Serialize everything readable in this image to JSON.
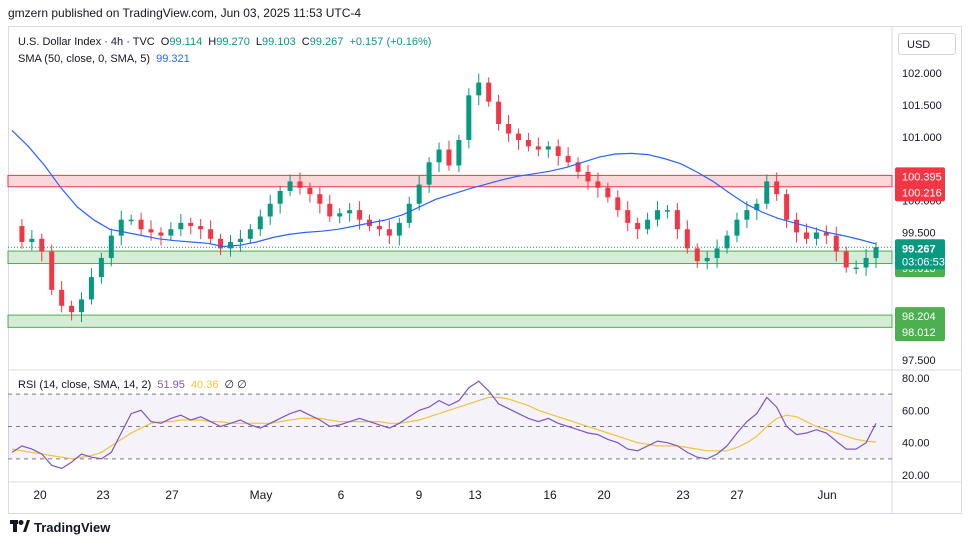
{
  "header": {
    "published_text": "gmzern published on TradingView.com, Jun 03, 2025 11:53 UTC-4"
  },
  "currency_button": "USD",
  "legend": {
    "symbol": "U.S. Dollar Index · 4h · TVC",
    "o_label": "O",
    "o_value": "99.114",
    "h_label": "H",
    "h_value": "99.270",
    "l_label": "L",
    "l_value": "99.103",
    "c_label": "C",
    "c_value": "99.267",
    "change": "+0.157 (+0.16%)",
    "sma_label": "SMA (50, close, 0, SMA, 5)",
    "sma_value": "99.321",
    "rsi_label": "RSI (14, close, SMA, 14, 2)",
    "rsi_value": "51.95",
    "rsi_ma_value": "40.36",
    "rsi_extra": "∅ ∅"
  },
  "colors": {
    "up": "#089981",
    "down": "#f23645",
    "sma": "#2962ff",
    "rsi": "#7e57c2",
    "rsi_ma": "#f0c43c",
    "red_zone": "#f8c9cc",
    "green_zone": "#c8e6c9",
    "green_label": "#4caf50",
    "price_label": "#089981",
    "red_label": "#f23645"
  },
  "footer": {
    "brand": "TradingView",
    "logo_icon": "tradingview-logo-icon"
  },
  "chart_data": [
    {
      "type": "candlestick",
      "title": "U.S. Dollar Index · 4h · TVC",
      "ylim": [
        97.3,
        102.3
      ],
      "y_ticks": [
        "102.000",
        "101.500",
        "101.000",
        "100.000",
        "99.500",
        "97.500"
      ],
      "x_ticks": [
        "20",
        "23",
        "27",
        "May",
        "6",
        "9",
        "13",
        "16",
        "20",
        "23",
        "27",
        "Jun"
      ],
      "close_path": [
        99.6,
        99.35,
        99.4,
        99.2,
        98.6,
        98.35,
        98.25,
        98.45,
        98.8,
        99.1,
        99.45,
        99.7,
        99.7,
        99.55,
        99.5,
        99.45,
        99.55,
        99.65,
        99.6,
        99.55,
        99.4,
        99.25,
        99.35,
        99.4,
        99.55,
        99.75,
        99.95,
        100.15,
        100.3,
        100.2,
        100.1,
        99.95,
        99.75,
        99.8,
        99.85,
        99.7,
        99.6,
        99.55,
        99.45,
        99.65,
        99.95,
        100.25,
        100.6,
        100.8,
        100.55,
        100.95,
        101.65,
        101.85,
        101.55,
        101.2,
        101.05,
        100.95,
        100.85,
        100.8,
        100.85,
        100.7,
        100.6,
        100.45,
        100.3,
        100.2,
        100.05,
        99.85,
        99.65,
        99.55,
        99.7,
        99.85,
        99.85,
        99.55,
        99.25,
        99.05,
        99.1,
        99.25,
        99.45,
        99.7,
        99.85,
        99.95,
        100.3,
        100.1,
        99.7,
        99.5,
        99.4,
        99.5,
        99.45,
        99.2,
        98.95,
        98.95,
        99.1,
        99.27
      ],
      "sma_path": [
        101.1,
        100.85,
        100.55,
        100.2,
        99.9,
        99.7,
        99.55,
        99.5,
        99.45,
        99.4,
        99.37,
        99.35,
        99.33,
        99.28,
        99.3,
        99.35,
        99.42,
        99.47,
        99.5,
        99.52,
        99.55,
        99.6,
        99.65,
        99.7,
        99.78,
        99.9,
        100.02,
        100.1,
        100.18,
        100.25,
        100.32,
        100.38,
        100.42,
        100.46,
        100.52,
        100.6,
        100.68,
        100.73,
        100.74,
        100.72,
        100.66,
        100.58,
        100.45,
        100.3,
        100.12,
        99.95,
        99.82,
        99.72,
        99.65,
        99.58,
        99.5,
        99.45,
        99.39,
        99.32
      ],
      "last_close": 99.267,
      "countdown": "03:06:53",
      "zones": [
        {
          "from": 100.216,
          "to": 100.395,
          "color": "red",
          "labels": [
            "100.395",
            "100.216"
          ]
        },
        {
          "from": 99.013,
          "to": 99.208,
          "color": "green",
          "labels": [
            "99.208",
            "99.013"
          ]
        },
        {
          "from": 98.012,
          "to": 98.204,
          "color": "green",
          "labels": [
            "98.204",
            "98.012"
          ]
        }
      ]
    },
    {
      "type": "line",
      "title": "RSI (14, close, SMA, 14, 2)",
      "ylim": [
        20,
        80
      ],
      "y_ticks": [
        "80.00",
        "60.00",
        "40.00",
        "20.00"
      ],
      "bands": [
        30,
        50,
        70
      ],
      "rsi": [
        34,
        38,
        36,
        33,
        26,
        24,
        28,
        33,
        31,
        30,
        34,
        46,
        58,
        60,
        53,
        52,
        55,
        57,
        54,
        56,
        53,
        50,
        52,
        54,
        51,
        49,
        52,
        55,
        58,
        60,
        57,
        54,
        50,
        51,
        53,
        55,
        53,
        51,
        49,
        52,
        56,
        60,
        62,
        66,
        63,
        66,
        74,
        78,
        72,
        64,
        61,
        58,
        55,
        53,
        55,
        52,
        50,
        48,
        46,
        45,
        42,
        40,
        36,
        35,
        38,
        41,
        40,
        38,
        34,
        31,
        30,
        33,
        38,
        46,
        53,
        58,
        68,
        62,
        50,
        45,
        46,
        48,
        46,
        41,
        36,
        36,
        40,
        52
      ],
      "rsi_ma": [
        36,
        35,
        34,
        33,
        32,
        31,
        30,
        31,
        32,
        34,
        38,
        42,
        46,
        49,
        52,
        53,
        53,
        54,
        54,
        54,
        53,
        53,
        52,
        52,
        52,
        52,
        52,
        53,
        54,
        55,
        55,
        55,
        54,
        53,
        53,
        53,
        53,
        53,
        52,
        52,
        53,
        54,
        56,
        58,
        60,
        62,
        64,
        66,
        68,
        68,
        67,
        65,
        63,
        60,
        58,
        56,
        54,
        52,
        50,
        48,
        46,
        44,
        42,
        40,
        39,
        38,
        38,
        38,
        37,
        36,
        35,
        35,
        35,
        37,
        40,
        44,
        50,
        55,
        57,
        56,
        53,
        50,
        48,
        46,
        44,
        42,
        41,
        40.36
      ],
      "last_value": 51.95
    }
  ]
}
